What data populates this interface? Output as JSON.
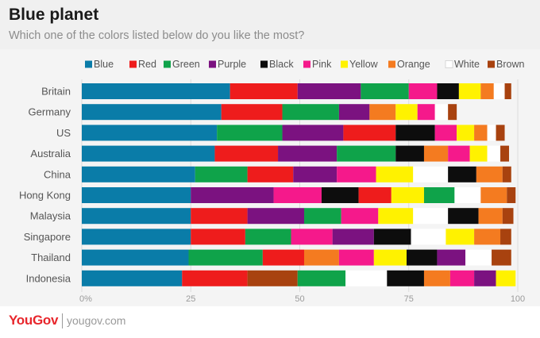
{
  "header": {
    "title": "Blue planet",
    "subtitle": "Which one of the colors listed below do you like the most?"
  },
  "footer": {
    "brand": "YouGov",
    "site": "yougov.com"
  },
  "chart_data": {
    "type": "bar",
    "orientation": "horizontal",
    "stacked": true,
    "title": "Blue planet",
    "subtitle": "Which one of the colors listed below do you like the most?",
    "xlabel": "",
    "ylabel": "",
    "xlim": [
      0,
      100
    ],
    "xticks": [
      "0%",
      "25",
      "50",
      "75",
      "100"
    ],
    "xtick_values": [
      0,
      25,
      50,
      75,
      100
    ],
    "grid": true,
    "legend_position": "top",
    "categories": [
      "Britain",
      "Germany",
      "US",
      "Australia",
      "China",
      "Hong Kong",
      "Malaysia",
      "Singapore",
      "Thailand",
      "Indonesia"
    ],
    "series": [
      {
        "name": "Blue",
        "color": "#0a7ca8",
        "order_rank": 0
      },
      {
        "name": "Red",
        "color": "#ee1c1c",
        "order_rank": 1
      },
      {
        "name": "Green",
        "color": "#0fa34a",
        "order_rank": 2
      },
      {
        "name": "Purple",
        "color": "#7b1280",
        "order_rank": 3
      },
      {
        "name": "Black",
        "color": "#0d0d0d",
        "order_rank": 4
      },
      {
        "name": "Pink",
        "color": "#f5198b",
        "order_rank": 5
      },
      {
        "name": "Yellow",
        "color": "#fff200",
        "order_rank": 6
      },
      {
        "name": "Orange",
        "color": "#f47b20",
        "order_rank": 7
      },
      {
        "name": "White",
        "color": "#ffffff",
        "order_rank": 8
      },
      {
        "name": "Brown",
        "color": "#a8420f",
        "order_rank": 9
      }
    ],
    "rows": [
      {
        "country": "Britain",
        "segments": [
          {
            "color": "Blue",
            "value": 34
          },
          {
            "color": "Red",
            "value": 15.5
          },
          {
            "color": "Purple",
            "value": 14.5
          },
          {
            "color": "Green",
            "value": 11
          },
          {
            "color": "Pink",
            "value": 6.5
          },
          {
            "color": "Black",
            "value": 5
          },
          {
            "color": "Yellow",
            "value": 5
          },
          {
            "color": "Orange",
            "value": 3
          },
          {
            "color": "White",
            "value": 2.5
          },
          {
            "color": "Brown",
            "value": 1.5
          }
        ]
      },
      {
        "country": "Germany",
        "segments": [
          {
            "color": "Blue",
            "value": 32
          },
          {
            "color": "Red",
            "value": 14
          },
          {
            "color": "Green",
            "value": 13
          },
          {
            "color": "Purple",
            "value": 7
          },
          {
            "color": "Orange",
            "value": 6
          },
          {
            "color": "Yellow",
            "value": 5
          },
          {
            "color": "Pink",
            "value": 4
          },
          {
            "color": "White",
            "value": 3
          },
          {
            "color": "Brown",
            "value": 2
          }
        ]
      },
      {
        "country": "US",
        "segments": [
          {
            "color": "Blue",
            "value": 31
          },
          {
            "color": "Green",
            "value": 15
          },
          {
            "color": "Purple",
            "value": 14
          },
          {
            "color": "Red",
            "value": 12
          },
          {
            "color": "Black",
            "value": 9
          },
          {
            "color": "Pink",
            "value": 5
          },
          {
            "color": "Yellow",
            "value": 4
          },
          {
            "color": "Orange",
            "value": 3
          },
          {
            "color": "White",
            "value": 2
          },
          {
            "color": "Brown",
            "value": 2
          }
        ]
      },
      {
        "country": "Australia",
        "segments": [
          {
            "color": "Blue",
            "value": 30.5
          },
          {
            "color": "Red",
            "value": 14.5
          },
          {
            "color": "Purple",
            "value": 13.5
          },
          {
            "color": "Green",
            "value": 13.5
          },
          {
            "color": "Black",
            "value": 6.5
          },
          {
            "color": "Orange",
            "value": 5.5
          },
          {
            "color": "Pink",
            "value": 5
          },
          {
            "color": "Yellow",
            "value": 4
          },
          {
            "color": "White",
            "value": 3
          },
          {
            "color": "Brown",
            "value": 2
          }
        ]
      },
      {
        "country": "China",
        "segments": [
          {
            "color": "Blue",
            "value": 26
          },
          {
            "color": "Green",
            "value": 12
          },
          {
            "color": "Red",
            "value": 10.5
          },
          {
            "color": "Purple",
            "value": 10
          },
          {
            "color": "Pink",
            "value": 9
          },
          {
            "color": "Yellow",
            "value": 8.5
          },
          {
            "color": "White",
            "value": 8
          },
          {
            "color": "Black",
            "value": 6.5
          },
          {
            "color": "Orange",
            "value": 6
          },
          {
            "color": "Brown",
            "value": 2
          }
        ]
      },
      {
        "country": "Hong Kong",
        "segments": [
          {
            "color": "Blue",
            "value": 25
          },
          {
            "color": "Purple",
            "value": 19
          },
          {
            "color": "Pink",
            "value": 11
          },
          {
            "color": "Black",
            "value": 8.5
          },
          {
            "color": "Red",
            "value": 7.5
          },
          {
            "color": "Yellow",
            "value": 7.5
          },
          {
            "color": "Green",
            "value": 7
          },
          {
            "color": "White",
            "value": 6
          },
          {
            "color": "Orange",
            "value": 6
          },
          {
            "color": "Brown",
            "value": 2
          }
        ]
      },
      {
        "country": "Malaysia",
        "segments": [
          {
            "color": "Blue",
            "value": 25
          },
          {
            "color": "Red",
            "value": 13
          },
          {
            "color": "Purple",
            "value": 13
          },
          {
            "color": "Green",
            "value": 8.5
          },
          {
            "color": "Pink",
            "value": 8.5
          },
          {
            "color": "Yellow",
            "value": 8
          },
          {
            "color": "White",
            "value": 8
          },
          {
            "color": "Black",
            "value": 7
          },
          {
            "color": "Orange",
            "value": 5.5
          },
          {
            "color": "Brown",
            "value": 2.5
          }
        ]
      },
      {
        "country": "Singapore",
        "segments": [
          {
            "color": "Blue",
            "value": 25
          },
          {
            "color": "Red",
            "value": 12.5
          },
          {
            "color": "Green",
            "value": 10.5
          },
          {
            "color": "Pink",
            "value": 9.5
          },
          {
            "color": "Purple",
            "value": 9.5
          },
          {
            "color": "Black",
            "value": 8.5
          },
          {
            "color": "White",
            "value": 8
          },
          {
            "color": "Yellow",
            "value": 6.5
          },
          {
            "color": "Orange",
            "value": 6
          },
          {
            "color": "Brown",
            "value": 2.5
          }
        ]
      },
      {
        "country": "Thailand",
        "segments": [
          {
            "color": "Blue",
            "value": 24.5
          },
          {
            "color": "Green",
            "value": 17
          },
          {
            "color": "Red",
            "value": 9.5
          },
          {
            "color": "Orange",
            "value": 8
          },
          {
            "color": "Pink",
            "value": 8
          },
          {
            "color": "Yellow",
            "value": 7.5
          },
          {
            "color": "Black",
            "value": 7
          },
          {
            "color": "Purple",
            "value": 6.5
          },
          {
            "color": "White",
            "value": 6
          },
          {
            "color": "Brown",
            "value": 4.5
          }
        ]
      },
      {
        "country": "Indonesia",
        "segments": [
          {
            "color": "Blue",
            "value": 23
          },
          {
            "color": "Red",
            "value": 15
          },
          {
            "color": "Brown",
            "value": 11.5
          },
          {
            "color": "Green",
            "value": 11
          },
          {
            "color": "White",
            "value": 9.5
          },
          {
            "color": "Black",
            "value": 8.5
          },
          {
            "color": "Orange",
            "value": 6
          },
          {
            "color": "Pink",
            "value": 5.5
          },
          {
            "color": "Purple",
            "value": 5
          },
          {
            "color": "Yellow",
            "value": 4.5
          }
        ]
      }
    ]
  }
}
